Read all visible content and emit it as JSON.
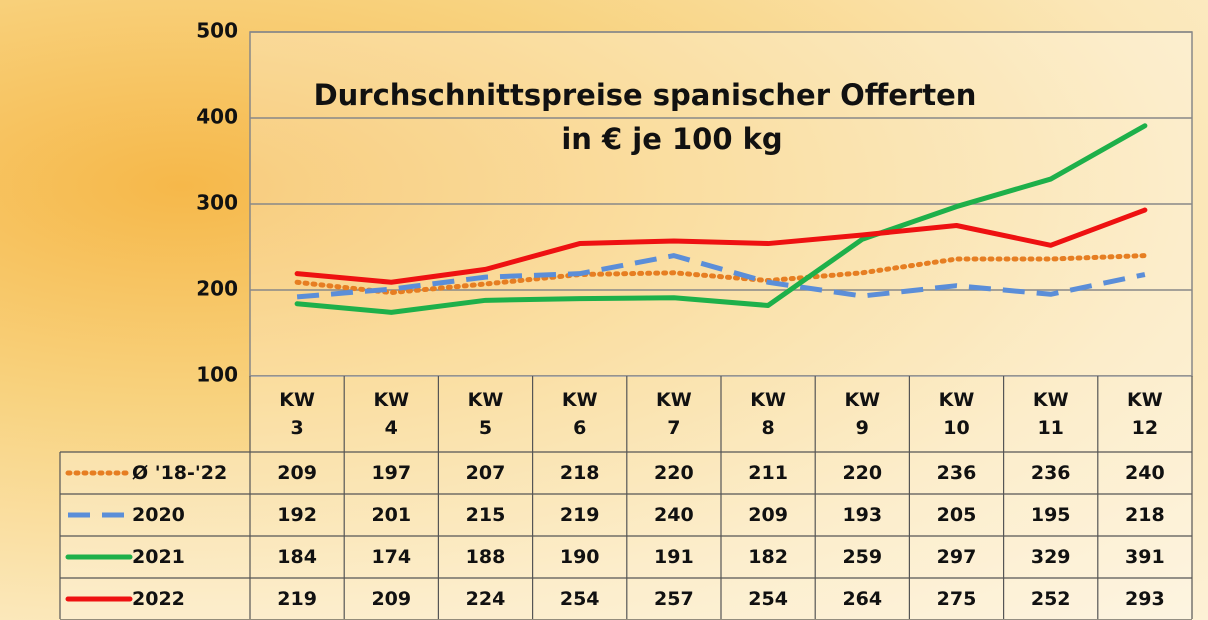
{
  "chart_data": {
    "type": "line",
    "title": "Durchschnittspreise spanischer Offerten",
    "subtitle": "in € je 100 kg",
    "categories": [
      "KW 3",
      "KW 4",
      "KW 5",
      "KW 6",
      "KW 7",
      "KW 8",
      "KW 9",
      "KW 10",
      "KW 11",
      "KW 12"
    ],
    "series": [
      {
        "name": "Ø '18-'22",
        "color": "#e67e22",
        "line_style": "dotted",
        "values": [
          209,
          197,
          207,
          218,
          220,
          211,
          220,
          236,
          236,
          240
        ]
      },
      {
        "name": "2020",
        "color": "#5b8ed8",
        "line_style": "dashed",
        "values": [
          192,
          201,
          215,
          219,
          240,
          209,
          193,
          205,
          195,
          218
        ]
      },
      {
        "name": "2021",
        "color": "#1eb04a",
        "line_style": "solid",
        "values": [
          184,
          174,
          188,
          190,
          191,
          182,
          259,
          297,
          329,
          391
        ]
      },
      {
        "name": "2022",
        "color": "#ee1111",
        "line_style": "solid",
        "values": [
          219,
          209,
          224,
          254,
          257,
          254,
          264,
          275,
          252,
          293
        ]
      }
    ],
    "ylim": [
      100,
      500
    ],
    "yticks": [
      100,
      200,
      300,
      400,
      500
    ],
    "grid": true,
    "data_table": true
  }
}
